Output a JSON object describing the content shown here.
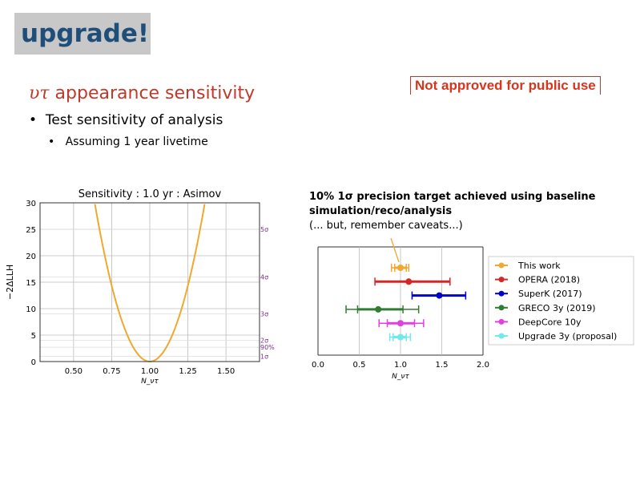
{
  "badge": "upgrade!",
  "warning": "Not approved for public use",
  "slide": {
    "title_symbol": "υτ",
    "title_text": " appearance sensitivity",
    "bullet1": "Test sensitivity of analysis",
    "bullet2": "Assuming 1 year livetime"
  },
  "annotation": {
    "line1": "10% 1σ precision target achieved using baseline",
    "line2": "simulation/reco/analysis",
    "line3": "(... but, remember caveats...)"
  },
  "colors": {
    "curve": "#f0a830",
    "sigma": "#7b2d8b"
  },
  "chart_data": [
    {
      "type": "line",
      "title": "Sensitivity : 1.0 yr : Asimov",
      "xlabel": "N_ντ",
      "ylabel": "−2ΔLLH",
      "xlim": [
        0.28,
        1.72
      ],
      "ylim": [
        0,
        30
      ],
      "xticks": [
        "0.50",
        "0.75",
        "1.00",
        "1.25",
        "1.50"
      ],
      "yticks": [
        "0",
        "5",
        "10",
        "15",
        "20",
        "25",
        "30"
      ],
      "curve": {
        "type": "parabola",
        "center": 1.0,
        "sigma": 0.066
      },
      "sigma_levels": [
        {
          "label": "1σ",
          "value": 1
        },
        {
          "label": "90%",
          "value": 2.71
        },
        {
          "label": "2σ",
          "value": 4
        },
        {
          "label": "3σ",
          "value": 9
        },
        {
          "label": "4σ",
          "value": 16
        },
        {
          "label": "5σ",
          "value": 25
        }
      ],
      "grid": true
    },
    {
      "type": "errorbar",
      "xlabel": "N_ντ",
      "xlim": [
        0,
        2
      ],
      "xticks": [
        "0.0",
        "0.5",
        "1.0",
        "1.5",
        "2.0"
      ],
      "legend": "right",
      "series": [
        {
          "name": "This work",
          "color": "#f0a830",
          "center": 1.0,
          "lo": 0.89,
          "hi": 1.1,
          "inner": [
            0.93,
            1.07
          ]
        },
        {
          "name": "OPERA (2018)",
          "color": "#d62728",
          "center": 1.1,
          "lo": 0.69,
          "hi": 1.6,
          "inner": null
        },
        {
          "name": "SuperK (2017)",
          "color": "#0000cc",
          "center": 1.47,
          "lo": 1.14,
          "hi": 1.79,
          "inner": null
        },
        {
          "name": "GRECO 3y (2019)",
          "color": "#2e7d32",
          "center": 0.73,
          "lo": 0.34,
          "hi": 1.22,
          "inner": [
            0.48,
            1.03
          ]
        },
        {
          "name": "DeepCore 10y",
          "color": "#e040e0",
          "center": 1.0,
          "lo": 0.74,
          "hi": 1.28,
          "inner": [
            0.84,
            1.17
          ]
        },
        {
          "name": "Upgrade 3y (proposal)",
          "color": "#6fe8f0",
          "center": 1.0,
          "lo": 0.87,
          "hi": 1.12,
          "inner": [
            0.91,
            1.07
          ]
        }
      ]
    }
  ]
}
